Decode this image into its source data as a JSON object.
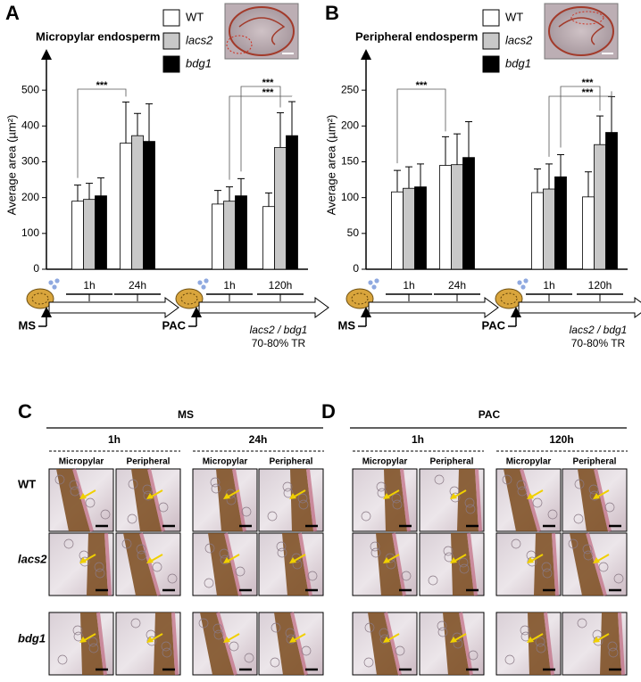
{
  "chart_data": [
    {
      "type": "bar",
      "panel": "A",
      "title": "Micropylar endosperm",
      "y_label": "Average area (µm²)",
      "categories": [
        "1h",
        "24h",
        "1h",
        "120h"
      ],
      "groups": [
        "MS",
        "PAC"
      ],
      "series": [
        {
          "name": "WT",
          "color": "#ffffff",
          "values": [
            190,
            352,
            182,
            175
          ],
          "errors": [
            45,
            115,
            38,
            38
          ]
        },
        {
          "name": "lacs2",
          "color": "#c8c8c8",
          "values": [
            195,
            373,
            190,
            340
          ],
          "errors": [
            45,
            62,
            40,
            97
          ]
        },
        {
          "name": "bdg1",
          "color": "#000000",
          "values": [
            205,
            357,
            205,
            373
          ],
          "errors": [
            50,
            105,
            48,
            95
          ]
        }
      ],
      "ylim": [
        0,
        590
      ],
      "yticks": [
        0,
        100,
        200,
        300,
        400,
        500
      ],
      "annotations": [
        "***",
        "***",
        "***"
      ],
      "note": [
        "lacs2 / bdg1",
        "70-80% TR"
      ]
    },
    {
      "type": "bar",
      "panel": "B",
      "title": "Peripheral endosperm",
      "y_label": "Average area (µm²)",
      "categories": [
        "1h",
        "24h",
        "1h",
        "120h"
      ],
      "groups": [
        "MS",
        "PAC"
      ],
      "series": [
        {
          "name": "WT",
          "color": "#ffffff",
          "values": [
            108,
            145,
            107,
            101
          ],
          "errors": [
            30,
            40,
            33,
            35
          ]
        },
        {
          "name": "lacs2",
          "color": "#c8c8c8",
          "values": [
            113,
            146,
            112,
            174
          ],
          "errors": [
            30,
            43,
            35,
            40
          ]
        },
        {
          "name": "bdg1",
          "color": "#000000",
          "values": [
            115,
            156,
            129,
            191
          ],
          "errors": [
            32,
            50,
            31,
            50
          ]
        }
      ],
      "ylim": [
        0,
        295
      ],
      "yticks": [
        0,
        50,
        100,
        150,
        200,
        250
      ],
      "annotations": [
        "***",
        "***",
        "***"
      ],
      "note": [
        "lacs2 / bdg1",
        "70-80% TR"
      ]
    }
  ],
  "row_labels": [
    "WT",
    "lacs2",
    "bdg1"
  ],
  "panels": [
    {
      "letter": "C",
      "condition": "MS",
      "times": [
        {
          "label": "1h",
          "columns": [
            "Micropylar",
            "Peripheral"
          ]
        },
        {
          "label": "24h",
          "columns": [
            "Micropylar",
            "Peripheral"
          ]
        }
      ]
    },
    {
      "letter": "D",
      "condition": "PAC",
      "times": [
        {
          "label": "1h",
          "columns": [
            "Micropylar",
            "Peripheral"
          ]
        },
        {
          "label": "120h",
          "columns": [
            "Micropylar",
            "Peripheral"
          ]
        }
      ]
    }
  ]
}
